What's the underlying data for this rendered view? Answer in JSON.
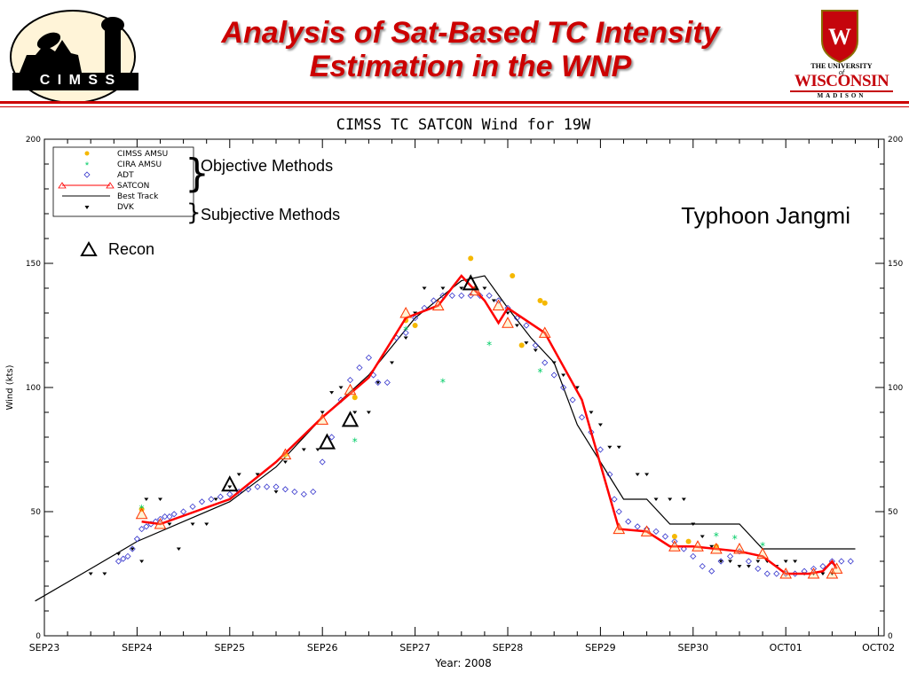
{
  "header": {
    "title_line1": "Analysis of Sat-Based TC Intensity",
    "title_line2": "Estimation in the WNP",
    "cimss_logo_text": "C I M S S",
    "uw_line1": "THE UNIVERSITY",
    "uw_of": "of",
    "uw_line2": "WISCONSIN",
    "uw_line3": "MADISON",
    "colors": {
      "title": "#cc0000",
      "rule": "#cc0000",
      "uw_red": "#c5050c"
    }
  },
  "annotations": {
    "objective": "Objective Methods",
    "subjective": "Subjective Methods",
    "storm": "Typhoon Jangmi",
    "recon": "Recon"
  },
  "chart_data": {
    "type": "line",
    "title": "CIMSS TC SATCON Wind for  19W",
    "xlabel": "Year: 2008",
    "ylabel": "Wind (kts)",
    "ylim": [
      0,
      200
    ],
    "xlim": [
      0,
      9
    ],
    "x_ticks": [
      {
        "x": 0,
        "label": "SEP23"
      },
      {
        "x": 1,
        "label": "SEP24"
      },
      {
        "x": 2,
        "label": "SEP25"
      },
      {
        "x": 3,
        "label": "SEP26"
      },
      {
        "x": 4,
        "label": "SEP27"
      },
      {
        "x": 5,
        "label": "SEP28"
      },
      {
        "x": 6,
        "label": "SEP29"
      },
      {
        "x": 7,
        "label": "SEP30"
      },
      {
        "x": 8,
        "label": "OCT01"
      },
      {
        "x": 9,
        "label": "OCT02"
      }
    ],
    "y_ticks": [
      0,
      50,
      100,
      150,
      200
    ],
    "legend_position": "top-left",
    "legend": [
      {
        "name": "CIMSS AMSU",
        "color": "#f5b800",
        "marker": "dot"
      },
      {
        "name": "CIRA AMSU",
        "color": "#00cc66",
        "marker": "star"
      },
      {
        "name": "ADT",
        "color": "#3333cc",
        "marker": "diamond"
      },
      {
        "name": "SATCON",
        "color": "#ff0000",
        "marker": "triangle"
      },
      {
        "name": "Best Track",
        "color": "#000000",
        "marker": "line"
      },
      {
        "name": "DVK",
        "color": "#000000",
        "marker": "heart"
      }
    ],
    "series": {
      "best_track": [
        [
          -0.1,
          14
        ],
        [
          0.5,
          27
        ],
        [
          1.0,
          38
        ],
        [
          1.5,
          46
        ],
        [
          2.0,
          54
        ],
        [
          2.5,
          68
        ],
        [
          3.0,
          88
        ],
        [
          3.5,
          105
        ],
        [
          4.0,
          128
        ],
        [
          4.5,
          143
        ],
        [
          4.75,
          145
        ],
        [
          5.0,
          132
        ],
        [
          5.25,
          120
        ],
        [
          5.5,
          110
        ],
        [
          5.75,
          85
        ],
        [
          6.0,
          70
        ],
        [
          6.25,
          55
        ],
        [
          6.5,
          55
        ],
        [
          6.75,
          45
        ],
        [
          7.0,
          45
        ],
        [
          7.5,
          45
        ],
        [
          7.75,
          35
        ],
        [
          8.0,
          35
        ],
        [
          8.5,
          35
        ],
        [
          8.75,
          35
        ]
      ],
      "satcon": [
        [
          1.05,
          46
        ],
        [
          1.25,
          45
        ],
        [
          2.0,
          55
        ],
        [
          2.5,
          70
        ],
        [
          3.0,
          88
        ],
        [
          3.5,
          104
        ],
        [
          3.9,
          128
        ],
        [
          4.25,
          133
        ],
        [
          4.5,
          145
        ],
        [
          4.75,
          135
        ],
        [
          4.9,
          126
        ],
        [
          5.0,
          132
        ],
        [
          5.4,
          122
        ],
        [
          5.8,
          95
        ],
        [
          6.2,
          43
        ],
        [
          6.5,
          42
        ],
        [
          6.75,
          36
        ],
        [
          7.0,
          36
        ],
        [
          7.5,
          34
        ],
        [
          7.75,
          32
        ],
        [
          8.0,
          25
        ],
        [
          8.25,
          25
        ],
        [
          8.4,
          26
        ],
        [
          8.5,
          30
        ],
        [
          8.55,
          27
        ]
      ],
      "satcon_markers": [
        [
          1.05,
          49
        ],
        [
          1.25,
          45
        ],
        [
          2.6,
          73
        ],
        [
          3.0,
          87
        ],
        [
          3.3,
          99
        ],
        [
          3.9,
          130
        ],
        [
          4.25,
          133
        ],
        [
          4.65,
          139
        ],
        [
          4.9,
          133
        ],
        [
          5.0,
          126
        ],
        [
          5.4,
          122
        ],
        [
          6.2,
          43
        ],
        [
          6.5,
          42
        ],
        [
          6.8,
          36
        ],
        [
          7.05,
          36
        ],
        [
          7.25,
          35
        ],
        [
          7.5,
          35
        ],
        [
          7.75,
          33
        ],
        [
          8.0,
          25
        ],
        [
          8.3,
          25
        ],
        [
          8.5,
          25
        ],
        [
          8.55,
          27
        ]
      ],
      "cimss_amsu": [
        [
          1.05,
          51
        ],
        [
          2.6,
          73
        ],
        [
          3.35,
          96
        ],
        [
          3.9,
          127
        ],
        [
          4.0,
          125
        ],
        [
          4.6,
          152
        ],
        [
          5.05,
          145
        ],
        [
          5.15,
          117
        ],
        [
          5.35,
          135
        ],
        [
          5.4,
          134
        ],
        [
          6.8,
          40
        ],
        [
          6.95,
          38
        ],
        [
          7.25,
          36
        ]
      ],
      "cira_amsu": [
        [
          1.05,
          51
        ],
        [
          3.35,
          78
        ],
        [
          3.9,
          123
        ],
        [
          4.3,
          102
        ],
        [
          4.8,
          117
        ],
        [
          5.35,
          106
        ],
        [
          7.25,
          40
        ],
        [
          7.45,
          39
        ],
        [
          7.75,
          36
        ]
      ],
      "adt": [
        [
          0.8,
          30
        ],
        [
          0.85,
          31
        ],
        [
          0.9,
          32
        ],
        [
          0.95,
          35
        ],
        [
          1.0,
          39
        ],
        [
          1.05,
          43
        ],
        [
          1.1,
          44
        ],
        [
          1.15,
          45
        ],
        [
          1.2,
          46
        ],
        [
          1.25,
          47
        ],
        [
          1.3,
          48
        ],
        [
          1.35,
          48
        ],
        [
          1.4,
          49
        ],
        [
          1.5,
          50
        ],
        [
          1.6,
          52
        ],
        [
          1.7,
          54
        ],
        [
          1.8,
          55
        ],
        [
          1.9,
          56
        ],
        [
          2.0,
          57
        ],
        [
          2.1,
          58
        ],
        [
          2.2,
          59
        ],
        [
          2.3,
          60
        ],
        [
          2.4,
          60
        ],
        [
          2.5,
          60
        ],
        [
          2.6,
          59
        ],
        [
          2.7,
          58
        ],
        [
          2.8,
          57
        ],
        [
          2.9,
          58
        ],
        [
          3.0,
          70
        ],
        [
          3.1,
          80
        ],
        [
          3.2,
          95
        ],
        [
          3.3,
          103
        ],
        [
          3.4,
          108
        ],
        [
          3.5,
          112
        ],
        [
          3.55,
          105
        ],
        [
          3.6,
          102
        ],
        [
          3.7,
          102
        ],
        [
          3.8,
          120
        ],
        [
          3.9,
          122
        ],
        [
          4.0,
          128
        ],
        [
          4.1,
          132
        ],
        [
          4.2,
          135
        ],
        [
          4.3,
          137
        ],
        [
          4.4,
          137
        ],
        [
          4.5,
          137
        ],
        [
          4.6,
          137
        ],
        [
          4.7,
          137
        ],
        [
          4.8,
          137
        ],
        [
          4.9,
          135
        ],
        [
          5.0,
          132
        ],
        [
          5.1,
          128
        ],
        [
          5.2,
          125
        ],
        [
          5.3,
          117
        ],
        [
          5.4,
          110
        ],
        [
          5.5,
          105
        ],
        [
          5.6,
          100
        ],
        [
          5.7,
          95
        ],
        [
          5.8,
          88
        ],
        [
          5.9,
          82
        ],
        [
          6.0,
          75
        ],
        [
          6.1,
          65
        ],
        [
          6.15,
          55
        ],
        [
          6.2,
          50
        ],
        [
          6.3,
          46
        ],
        [
          6.4,
          44
        ],
        [
          6.5,
          43
        ],
        [
          6.6,
          42
        ],
        [
          6.7,
          40
        ],
        [
          6.8,
          38
        ],
        [
          6.9,
          35
        ],
        [
          7.0,
          32
        ],
        [
          7.1,
          28
        ],
        [
          7.2,
          26
        ],
        [
          7.3,
          30
        ],
        [
          7.4,
          32
        ],
        [
          7.5,
          34
        ],
        [
          7.6,
          30
        ],
        [
          7.7,
          27
        ],
        [
          7.8,
          25
        ],
        [
          7.9,
          25
        ],
        [
          8.0,
          25
        ],
        [
          8.1,
          25
        ],
        [
          8.2,
          26
        ],
        [
          8.3,
          27
        ],
        [
          8.4,
          28
        ],
        [
          8.5,
          30
        ],
        [
          8.6,
          30
        ],
        [
          8.7,
          30
        ]
      ],
      "dvk": [
        [
          0.5,
          25
        ],
        [
          0.65,
          25
        ],
        [
          0.8,
          33
        ],
        [
          0.95,
          35
        ],
        [
          1.05,
          30
        ],
        [
          1.1,
          55
        ],
        [
          1.25,
          55
        ],
        [
          1.35,
          45
        ],
        [
          1.45,
          35
        ],
        [
          1.6,
          45
        ],
        [
          1.75,
          45
        ],
        [
          1.85,
          55
        ],
        [
          2.0,
          60
        ],
        [
          2.1,
          65
        ],
        [
          2.3,
          65
        ],
        [
          2.5,
          58
        ],
        [
          2.6,
          70
        ],
        [
          2.8,
          75
        ],
        [
          2.95,
          75
        ],
        [
          3.0,
          90
        ],
        [
          3.1,
          98
        ],
        [
          3.2,
          100
        ],
        [
          3.35,
          90
        ],
        [
          3.5,
          90
        ],
        [
          3.6,
          102
        ],
        [
          3.75,
          110
        ],
        [
          3.9,
          120
        ],
        [
          4.0,
          130
        ],
        [
          4.1,
          140
        ],
        [
          4.3,
          140
        ],
        [
          4.5,
          140
        ],
        [
          4.65,
          140
        ],
        [
          4.75,
          140
        ],
        [
          4.85,
          135
        ],
        [
          5.0,
          130
        ],
        [
          5.1,
          125
        ],
        [
          5.2,
          118
        ],
        [
          5.3,
          115
        ],
        [
          5.5,
          110
        ],
        [
          5.6,
          105
        ],
        [
          5.75,
          100
        ],
        [
          5.9,
          90
        ],
        [
          6.0,
          85
        ],
        [
          6.1,
          76
        ],
        [
          6.2,
          76
        ],
        [
          6.4,
          65
        ],
        [
          6.5,
          65
        ],
        [
          6.6,
          55
        ],
        [
          6.75,
          55
        ],
        [
          6.9,
          55
        ],
        [
          7.0,
          45
        ],
        [
          7.1,
          40
        ],
        [
          7.2,
          36
        ],
        [
          7.3,
          30
        ],
        [
          7.4,
          30
        ],
        [
          7.5,
          28
        ],
        [
          7.6,
          28
        ],
        [
          7.7,
          30
        ],
        [
          7.8,
          30
        ],
        [
          7.9,
          28
        ],
        [
          8.0,
          30
        ],
        [
          8.1,
          30
        ],
        [
          8.2,
          25
        ],
        [
          8.3,
          25
        ],
        [
          8.4,
          25
        ],
        [
          8.5,
          25
        ]
      ],
      "recon": [
        [
          2.0,
          61
        ],
        [
          3.05,
          78
        ],
        [
          3.3,
          87
        ],
        [
          4.6,
          142
        ]
      ]
    }
  }
}
